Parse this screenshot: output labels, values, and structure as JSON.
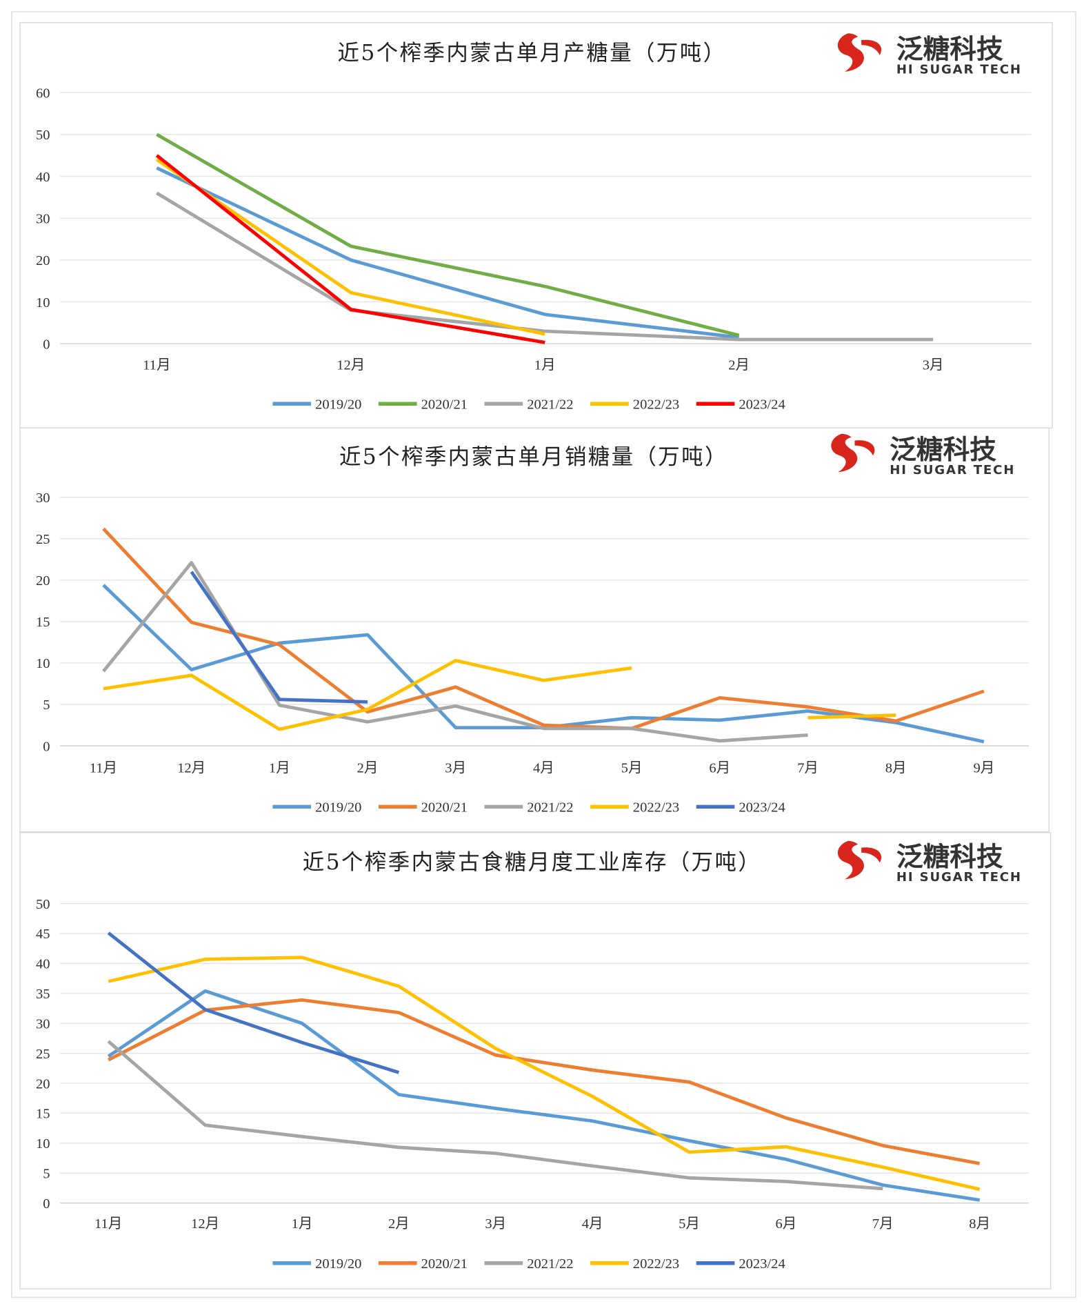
{
  "logo": {
    "cn": "泛糖科技",
    "en": "HI SUGAR TECH",
    "color": "#d9261c"
  },
  "series_colors": {
    "2019/20": "#5b9bd5",
    "2020/21": "#70ad47",
    "2021/22": "#a5a5a5",
    "2022/23": "#ffc000",
    "2023/24": "#ff0000"
  },
  "chart_data": [
    {
      "type": "line",
      "title": "近5个榨季内蒙古单月产糖量（万吨）",
      "categories": [
        "11月",
        "12月",
        "1月",
        "2月",
        "3月"
      ],
      "ylim": [
        0,
        60
      ],
      "yticks": [
        0,
        10,
        20,
        30,
        40,
        50,
        60
      ],
      "grid": true,
      "legend": "bottom",
      "series": [
        {
          "name": "2019/20",
          "color": "#5b9bd5",
          "values": [
            42,
            20,
            7,
            1.5,
            null
          ]
        },
        {
          "name": "2020/21",
          "color": "#70ad47",
          "values": [
            50,
            23.3,
            13.7,
            2,
            null
          ]
        },
        {
          "name": "2021/22",
          "color": "#a5a5a5",
          "values": [
            36,
            8,
            3,
            1,
            1
          ]
        },
        {
          "name": "2022/23",
          "color": "#ffc000",
          "values": [
            44,
            12.2,
            2.3,
            null,
            null
          ]
        },
        {
          "name": "2023/24",
          "color": "#ff0000",
          "values": [
            45,
            8.2,
            0.3,
            null,
            null
          ]
        }
      ]
    },
    {
      "type": "line",
      "title": "近5个榨季内蒙古单月销糖量（万吨）",
      "categories": [
        "11月",
        "12月",
        "1月",
        "2月",
        "3月",
        "4月",
        "5月",
        "6月",
        "7月",
        "8月",
        "9月"
      ],
      "ylim": [
        0,
        30
      ],
      "yticks": [
        0,
        5,
        10,
        15,
        20,
        25,
        30
      ],
      "grid": true,
      "legend": "bottom",
      "series": [
        {
          "name": "2019/20",
          "color": "#5b9bd5",
          "values": [
            19.4,
            9.2,
            12.4,
            13.4,
            2.2,
            2.2,
            3.4,
            3.1,
            4.2,
            2.8,
            0.5
          ]
        },
        {
          "name": "2020/21",
          "color": "#ed7d31",
          "values": [
            26.2,
            14.9,
            12.2,
            4.1,
            7.1,
            2.5,
            2.1,
            5.8,
            4.7,
            3.0,
            6.6
          ]
        },
        {
          "name": "2021/22",
          "color": "#a5a5a5",
          "values": [
            9,
            22.1,
            4.9,
            2.9,
            4.8,
            2.1,
            2.1,
            0.6,
            1.3,
            null,
            null
          ]
        },
        {
          "name": "2022/23",
          "color": "#ffc000",
          "values": [
            6.9,
            8.5,
            2.0,
            4.4,
            10.3,
            7.9,
            9.4,
            null,
            3.4,
            3.7,
            null
          ]
        },
        {
          "name": "2023/24",
          "color": "#4472c4",
          "values": [
            null,
            21,
            5.6,
            5.3,
            null,
            null,
            null,
            null,
            null,
            null,
            null
          ]
        }
      ]
    },
    {
      "type": "line",
      "title": "近5个榨季内蒙古食糖月度工业库存（万吨）",
      "categories": [
        "11月",
        "12月",
        "1月",
        "2月",
        "3月",
        "4月",
        "5月",
        "6月",
        "7月",
        "8月"
      ],
      "ylim": [
        0,
        50
      ],
      "yticks": [
        0,
        5,
        10,
        15,
        20,
        25,
        30,
        35,
        40,
        45,
        50
      ],
      "grid": true,
      "legend": "bottom",
      "series": [
        {
          "name": "2019/20",
          "color": "#5b9bd5",
          "values": [
            24.5,
            35.4,
            30,
            18.1,
            15.8,
            13.7,
            10.4,
            7.3,
            3,
            0.5
          ]
        },
        {
          "name": "2020/21",
          "color": "#ed7d31",
          "values": [
            23.9,
            32.2,
            33.9,
            31.8,
            24.7,
            22.2,
            20.2,
            14.2,
            9.6,
            6.6
          ]
        },
        {
          "name": "2021/22",
          "color": "#a5a5a5",
          "values": [
            27,
            13,
            11.1,
            9.3,
            8.3,
            6.2,
            4.2,
            3.6,
            2.4,
            null
          ]
        },
        {
          "name": "2022/23",
          "color": "#ffc000",
          "values": [
            37,
            40.7,
            41,
            36.2,
            25.8,
            17.8,
            8.5,
            9.4,
            6,
            2.3
          ]
        },
        {
          "name": "2023/24",
          "color": "#4472c4",
          "values": [
            45.1,
            32.3,
            26.8,
            21.8,
            null,
            null,
            null,
            null,
            null,
            null
          ]
        }
      ]
    }
  ]
}
